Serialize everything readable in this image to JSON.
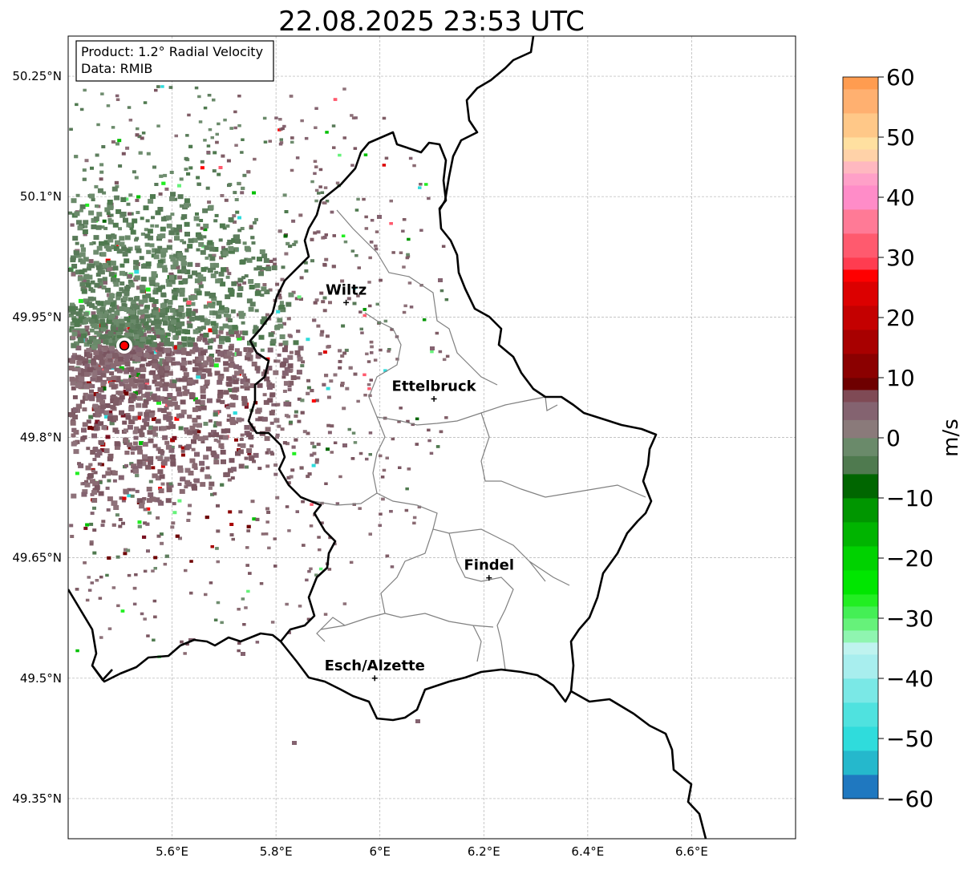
{
  "title": "22.08.2025 23:53 UTC",
  "info_box": {
    "product_line": "Product: 1.2° Radial Velocity",
    "data_line": "Data: RMIB"
  },
  "map": {
    "lon_range": [
      5.4,
      6.8
    ],
    "lat_range": [
      49.3,
      50.3
    ],
    "x_ticks": [
      {
        "value": 5.6,
        "label": "5.6°E"
      },
      {
        "value": 5.8,
        "label": "5.8°E"
      },
      {
        "value": 6.0,
        "label": "6°E"
      },
      {
        "value": 6.2,
        "label": "6.2°E"
      },
      {
        "value": 6.4,
        "label": "6.4°E"
      },
      {
        "value": 6.6,
        "label": "6.6°E"
      }
    ],
    "y_ticks": [
      {
        "value": 50.25,
        "label": "50.25°N"
      },
      {
        "value": 50.1,
        "label": "50.1°N"
      },
      {
        "value": 49.95,
        "label": "49.95°N"
      },
      {
        "value": 49.8,
        "label": "49.8°N"
      },
      {
        "value": 49.65,
        "label": "49.65°N"
      },
      {
        "value": 49.5,
        "label": "49.5°N"
      },
      {
        "value": 49.35,
        "label": "49.35°N"
      }
    ],
    "radar_site": {
      "lon": 5.505,
      "lat": 49.915
    },
    "cities": [
      {
        "name": "Wiltz",
        "lon": 5.935,
        "lat": 49.968
      },
      {
        "name": "Ettelbruck",
        "lon": 6.104,
        "lat": 49.848
      },
      {
        "name": "Findel",
        "lon": 6.21,
        "lat": 49.625
      },
      {
        "name": "Esch/Alzette",
        "lon": 5.99,
        "lat": 49.5
      }
    ]
  },
  "colorbar": {
    "label": "m/s",
    "min": -60,
    "max": 60,
    "ticks": [
      {
        "value": 60,
        "label": "60"
      },
      {
        "value": 50,
        "label": "50"
      },
      {
        "value": 40,
        "label": "40"
      },
      {
        "value": 30,
        "label": "30"
      },
      {
        "value": 20,
        "label": "20"
      },
      {
        "value": 10,
        "label": "10"
      },
      {
        "value": 0,
        "label": "0"
      },
      {
        "value": -10,
        "label": "−10"
      },
      {
        "value": -20,
        "label": "−20"
      },
      {
        "value": -30,
        "label": "−30"
      },
      {
        "value": -40,
        "label": "−40"
      },
      {
        "value": -50,
        "label": "−50"
      },
      {
        "value": -60,
        "label": "−60"
      }
    ],
    "bands": [
      {
        "from": -60,
        "to": -56,
        "color": "#1f78c0"
      },
      {
        "from": -56,
        "to": -52,
        "color": "#25b8cc"
      },
      {
        "from": -52,
        "to": -48,
        "color": "#2fdcdc"
      },
      {
        "from": -48,
        "to": -44,
        "color": "#4fe2df"
      },
      {
        "from": -44,
        "to": -40,
        "color": "#7ae8e6"
      },
      {
        "from": -40,
        "to": -36,
        "color": "#a8eeee"
      },
      {
        "from": -36,
        "to": -34,
        "color": "#bff3ef"
      },
      {
        "from": -34,
        "to": -32,
        "color": "#8ff5b0"
      },
      {
        "from": -32,
        "to": -30,
        "color": "#66f27a"
      },
      {
        "from": -30,
        "to": -28,
        "color": "#44ef55"
      },
      {
        "from": -28,
        "to": -26,
        "color": "#22ee22"
      },
      {
        "from": -26,
        "to": -22,
        "color": "#00e600"
      },
      {
        "from": -22,
        "to": -18,
        "color": "#00d200"
      },
      {
        "from": -18,
        "to": -14,
        "color": "#00b400"
      },
      {
        "from": -14,
        "to": -10,
        "color": "#009600"
      },
      {
        "from": -10,
        "to": -6,
        "color": "#006600"
      },
      {
        "from": -6,
        "to": -3,
        "color": "#4f7a4f"
      },
      {
        "from": -3,
        "to": 0,
        "color": "#6a8a6a"
      },
      {
        "from": 0,
        "to": 3,
        "color": "#8a7a7a"
      },
      {
        "from": 3,
        "to": 6,
        "color": "#846370"
      },
      {
        "from": 6,
        "to": 8,
        "color": "#7f4a55"
      },
      {
        "from": 8,
        "to": 10,
        "color": "#6e0000"
      },
      {
        "from": 10,
        "to": 14,
        "color": "#8b0000"
      },
      {
        "from": 14,
        "to": 18,
        "color": "#a80000"
      },
      {
        "from": 18,
        "to": 22,
        "color": "#c40000"
      },
      {
        "from": 22,
        "to": 26,
        "color": "#dc0000"
      },
      {
        "from": 26,
        "to": 28,
        "color": "#ff0000"
      },
      {
        "from": 28,
        "to": 30,
        "color": "#ff3c50"
      },
      {
        "from": 30,
        "to": 34,
        "color": "#ff5a6e"
      },
      {
        "from": 34,
        "to": 38,
        "color": "#ff7a96"
      },
      {
        "from": 38,
        "to": 42,
        "color": "#ff8cc8"
      },
      {
        "from": 42,
        "to": 44,
        "color": "#ffa0c8"
      },
      {
        "from": 44,
        "to": 46,
        "color": "#ffb8c0"
      },
      {
        "from": 46,
        "to": 48,
        "color": "#ffd2a8"
      },
      {
        "from": 48,
        "to": 50,
        "color": "#ffe0a0"
      },
      {
        "from": 50,
        "to": 54,
        "color": "#ffc888"
      },
      {
        "from": 54,
        "to": 58,
        "color": "#ffb070"
      },
      {
        "from": 58,
        "to": 60,
        "color": "#ff9c50"
      }
    ]
  }
}
